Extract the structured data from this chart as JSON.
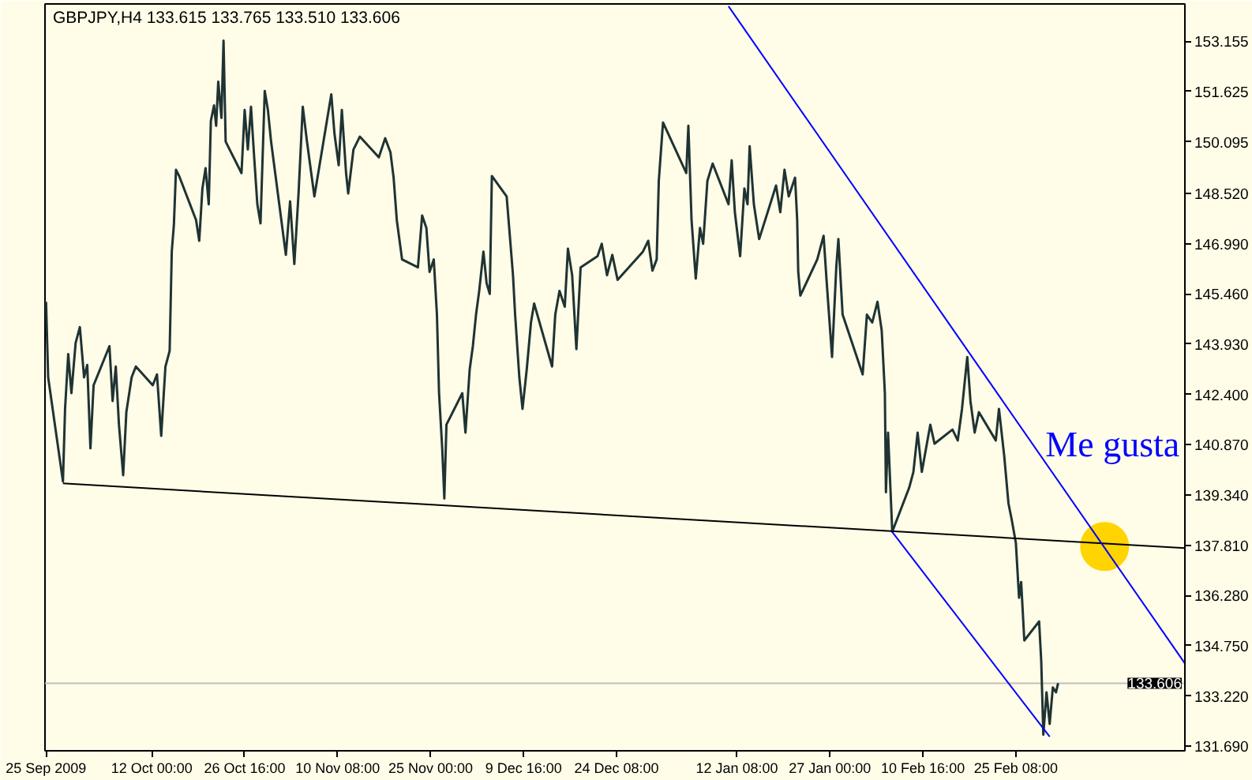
{
  "chart_data": {
    "type": "line",
    "title": "GBPJPY,H4 133.615 133.765 133.510 133.606",
    "xlim": [
      "2009-09-25T04:00",
      "2010-03-24T00:00"
    ],
    "xticks": [
      {
        "value": "2009-09-25T08:00",
        "label": "25 Sep 2009"
      },
      {
        "value": "2009-10-12T00:00",
        "label": "12 Oct 00:00"
      },
      {
        "value": "2009-10-26T16:00",
        "label": "26 Oct 16:00"
      },
      {
        "value": "2009-11-10T08:00",
        "label": "10 Nov 08:00"
      },
      {
        "value": "2009-11-25T00:00",
        "label": "25 Nov 00:00"
      },
      {
        "value": "2009-12-09T16:00",
        "label": "9 Dec 16:00"
      },
      {
        "value": "2009-12-24T08:00",
        "label": "24 Dec 08:00"
      },
      {
        "value": "2010-01-12T08:00",
        "label": "12 Jan 08:00"
      },
      {
        "value": "2010-01-27T00:00",
        "label": "27 Jan 00:00"
      },
      {
        "value": "2010-02-10T16:00",
        "label": "10 Feb 16:00"
      },
      {
        "value": "2010-02-25T08:00",
        "label": "25 Feb 08:00"
      }
    ],
    "ylim": [
      131.55,
      154.29
    ],
    "yticks": [
      153.155,
      151.625,
      150.095,
      {
        "value": 148.52,
        "label": "148.520"
      },
      {
        "value": 146.99,
        "label": "146.990"
      },
      {
        "value": 145.46,
        "label": "145.460"
      },
      {
        "value": 143.93,
        "label": "143.930"
      },
      {
        "value": 142.4,
        "label": "142.400"
      },
      {
        "value": 140.87,
        "label": "140.870"
      },
      {
        "value": 139.34,
        "label": "139.340"
      },
      {
        "value": 137.81,
        "label": "137.810"
      },
      {
        "value": 136.28,
        "label": "136.280"
      },
      {
        "value": 134.75,
        "label": "134.750"
      },
      {
        "value": 133.22,
        "label": "133.220"
      },
      {
        "value": 131.69,
        "label": "131.690"
      }
    ],
    "series": [
      {
        "color": "#1f3333",
        "x": [
          "2009-09-25T08:00",
          "2009-09-25T16:00",
          "2009-09-28T00:00",
          "2009-09-28T08:00",
          "2009-09-28T20:00",
          "2009-09-29T08:00",
          "2009-09-30T00:00",
          "2009-09-30T16:00",
          "2009-10-01T08:00",
          "2009-10-01T20:00",
          "2009-10-02T08:00",
          "2009-10-02T20:00",
          "2009-10-05T08:00",
          "2009-10-05T20:00",
          "2009-10-06T08:00",
          "2009-10-06T20:00",
          "2009-10-07T12:00",
          "2009-10-08T00:00",
          "2009-10-08T20:00",
          "2009-10-09T12:00",
          "2009-10-12T04:00",
          "2009-10-12T20:00",
          "2009-10-13T12:00",
          "2009-10-14T04:00",
          "2009-10-14T20:00",
          "2009-10-15T04:00",
          "2009-10-15T12:00",
          "2009-10-15T20:00",
          "2009-10-16T08:00",
          "2009-10-19T00:00",
          "2009-10-19T12:00",
          "2009-10-20T00:00",
          "2009-10-20T12:00",
          "2009-10-21T00:00",
          "2009-10-21T08:00",
          "2009-10-21T20:00",
          "2009-10-22T04:00",
          "2009-10-22T12:00",
          "2009-10-23T00:00",
          "2009-10-23T08:00",
          "2009-10-23T16:00",
          "2009-10-26T04:00",
          "2009-10-26T16:00",
          "2009-10-27T04:00",
          "2009-10-27T16:00",
          "2009-10-28T04:00",
          "2009-10-28T16:00",
          "2009-10-29T04:00",
          "2009-10-29T20:00",
          "2009-10-30T08:00",
          "2009-10-30T20:00",
          "2009-11-02T04:00",
          "2009-11-02T20:00",
          "2009-11-03T12:00",
          "2009-11-04T04:00",
          "2009-11-04T20:00",
          "2009-11-05T12:00",
          "2009-11-06T04:00",
          "2009-11-06T16:00",
          "2009-11-09T08:00",
          "2009-11-09T20:00",
          "2009-11-10T12:00",
          "2009-11-11T00:00",
          "2009-11-11T16:00",
          "2009-11-12T00:00",
          "2009-11-12T20:00",
          "2009-11-13T20:00",
          "2009-11-16T20:00",
          "2009-11-17T20:00",
          "2009-11-18T16:00",
          "2009-11-19T04:00",
          "2009-11-19T16:00",
          "2009-11-20T12:00",
          "2009-11-23T00:00",
          "2009-11-23T16:00",
          "2009-11-24T08:00",
          "2009-11-24T20:00",
          "2009-11-25T12:00",
          "2009-11-26T00:00",
          "2009-11-26T08:00",
          "2009-11-26T20:00",
          "2009-11-27T04:00",
          "2009-11-27T12:00",
          "2009-11-30T00:00",
          "2009-11-30T12:00",
          "2009-12-01T04:00",
          "2009-12-01T16:00",
          "2009-12-02T04:00",
          "2009-12-02T16:00",
          "2009-12-03T08:00",
          "2009-12-03T20:00",
          "2009-12-04T08:00",
          "2009-12-04T16:00",
          "2009-12-07T00:00",
          "2009-12-07T12:00",
          "2009-12-08T00:00",
          "2009-12-08T08:00",
          "2009-12-09T00:00",
          "2009-12-09T12:00",
          "2009-12-10T04:00",
          "2009-12-10T20:00",
          "2009-12-11T08:00",
          "2009-12-14T04:00",
          "2009-12-14T16:00",
          "2009-12-15T08:00",
          "2009-12-16T04:00",
          "2009-12-16T16:00",
          "2009-12-17T08:00",
          "2009-12-18T00:00",
          "2009-12-18T16:00",
          "2009-12-21T08:00",
          "2009-12-22T00:00",
          "2009-12-22T20:00",
          "2009-12-23T16:00",
          "2009-12-24T12:00",
          "2009-12-28T12:00",
          "2009-12-29T08:00",
          "2009-12-30T00:00",
          "2009-12-30T16:00",
          "2009-12-31T00:00",
          "2009-12-31T16:00",
          "2010-01-04T08:00",
          "2010-01-04T16:00",
          "2010-01-05T04:00",
          "2010-01-05T20:00",
          "2010-01-06T12:00",
          "2010-01-07T00:00",
          "2010-01-07T16:00",
          "2010-01-08T12:00",
          "2010-01-11T00:00",
          "2010-01-11T12:00",
          "2010-01-12T00:00",
          "2010-01-12T20:00",
          "2010-01-13T12:00",
          "2010-01-14T00:00",
          "2010-01-14T08:00",
          "2010-01-15T00:00",
          "2010-01-15T20:00",
          "2010-01-18T12:00",
          "2010-01-19T04:00",
          "2010-01-19T20:00",
          "2010-01-20T12:00",
          "2010-01-21T12:00",
          "2010-01-21T20:00",
          "2010-01-22T00:00",
          "2010-01-22T08:00",
          "2010-01-25T00:00",
          "2010-01-26T00:00",
          "2010-01-26T12:00",
          "2010-01-27T08:00",
          "2010-01-28T00:00",
          "2010-01-28T08:00",
          "2010-01-29T00:00",
          "2010-02-01T04:00",
          "2010-02-01T20:00",
          "2010-02-02T16:00",
          "2010-02-03T12:00",
          "2010-02-04T04:00",
          "2010-02-04T16:00",
          "2010-02-04T20:00",
          "2010-02-05T04:00",
          "2010-02-05T20:00",
          "2010-02-08T12:00",
          "2010-02-09T04:00",
          "2010-02-09T20:00",
          "2010-02-10T12:00",
          "2010-02-11T04:00",
          "2010-02-11T20:00",
          "2010-02-12T12:00",
          "2010-02-15T08:00",
          "2010-02-16T04:00",
          "2010-02-16T20:00",
          "2010-02-17T16:00",
          "2010-02-18T04:00",
          "2010-02-18T20:00",
          "2010-02-19T12:00",
          "2010-02-22T04:00",
          "2010-02-22T16:00",
          "2010-02-23T12:00",
          "2010-02-24T04:00",
          "2010-02-24T16:00",
          "2010-02-25T08:00",
          "2010-02-25T20:00",
          "2010-02-26T04:00",
          "2010-02-26T16:00",
          "2010-03-01T00:00",
          "2010-03-01T08:00",
          "2010-03-01T16:00",
          "2010-03-02T04:00",
          "2010-03-02T16:00",
          "2010-03-03T04:00",
          "2010-03-03T16:00",
          "2010-03-04T00:00"
        ],
        "values": [
          145.22,
          142.92,
          139.75,
          141.96,
          143.63,
          142.44,
          143.97,
          144.45,
          142.92,
          143.3,
          140.76,
          142.68,
          143.87,
          142.2,
          143.25,
          141.48,
          139.94,
          141.86,
          142.92,
          143.25,
          142.68,
          143.01,
          141.14,
          143.25,
          143.73,
          146.75,
          147.56,
          149.24,
          149.05,
          147.71,
          147.08,
          148.67,
          149.29,
          148.19,
          150.73,
          151.2,
          150.58,
          151.92,
          150.82,
          153.17,
          150.1,
          149.14,
          151.06,
          149.86,
          151.16,
          149.62,
          148.19,
          147.61,
          151.64,
          151.06,
          150.1,
          146.65,
          148.28,
          146.37,
          148.52,
          151.16,
          150.1,
          149.14,
          148.43,
          151.54,
          150.34,
          149.38,
          151.06,
          149.14,
          148.52,
          149.86,
          150.25,
          149.62,
          150.2,
          149.77,
          149.0,
          147.71,
          146.51,
          146.27,
          147.85,
          147.47,
          146.13,
          146.51,
          144.83,
          142.44,
          140.76,
          139.23,
          141.48,
          142.44,
          141.24,
          143.16,
          143.87,
          144.83,
          145.55,
          146.75,
          145.79,
          145.46,
          149.05,
          148.43,
          147.23,
          146.03,
          144.83,
          142.92,
          141.96,
          143.16,
          144.59,
          145.17,
          143.25,
          144.83,
          145.55,
          145.07,
          146.84,
          146.03,
          143.78,
          146.27,
          146.61,
          146.99,
          146.03,
          146.65,
          145.89,
          146.75,
          147.08,
          146.17,
          146.51,
          148.9,
          150.68,
          149.14,
          150.58,
          147.71,
          145.93,
          147.47,
          146.99,
          148.9,
          149.43,
          148.19,
          149.53,
          147.95,
          146.61,
          148.67,
          148.19,
          149.96,
          148.19,
          147.13,
          148.76,
          147.95,
          149.24,
          148.43,
          149.0,
          147.71,
          146.13,
          145.41,
          146.51,
          147.23,
          145.79,
          143.54,
          146.27,
          147.13,
          144.83,
          143.01,
          144.83,
          144.59,
          145.22,
          144.35,
          142.44,
          139.42,
          141.24,
          138.22,
          139.56,
          140.04,
          141.24,
          140.04,
          140.76,
          141.48,
          140.9,
          141.33,
          141.0,
          141.96,
          143.54,
          142.2,
          141.24,
          141.86,
          141.0,
          141.96,
          140.52,
          139.08,
          138.6,
          137.88,
          136.21,
          136.69,
          134.91,
          135.49,
          134.29,
          132.04,
          133.33,
          132.37,
          133.48,
          133.33,
          133.61
        ]
      },
      {
        "color": "#000000",
        "x": [
          "2009-09-28T00:00",
          "2010-03-24T00:00"
        ],
        "values": [
          139.69,
          137.72
        ]
      },
      {
        "color": "#0000ff",
        "x": [
          "2010-01-11T00:00",
          "2010-03-24T00:00"
        ],
        "values": [
          154.22,
          134.21
        ]
      },
      {
        "color": "#0000ff",
        "x": [
          "2010-02-05T20:00",
          "2010-03-02T16:00"
        ],
        "values": [
          138.21,
          131.98
        ]
      },
      {
        "type": "scatter",
        "color": "#ffd400",
        "marker": "circle",
        "x": [
          "2010-03-11T08:00"
        ],
        "values": [
          137.77
        ]
      }
    ],
    "ref_lines": [
      {
        "axis": "y",
        "value": 133.606,
        "label": "133.606",
        "color": "#c0c0c0"
      }
    ],
    "annotations": [
      {
        "text": "Me gusta",
        "x": "2010-03-11T08:00",
        "y": 137.77
      }
    ]
  }
}
